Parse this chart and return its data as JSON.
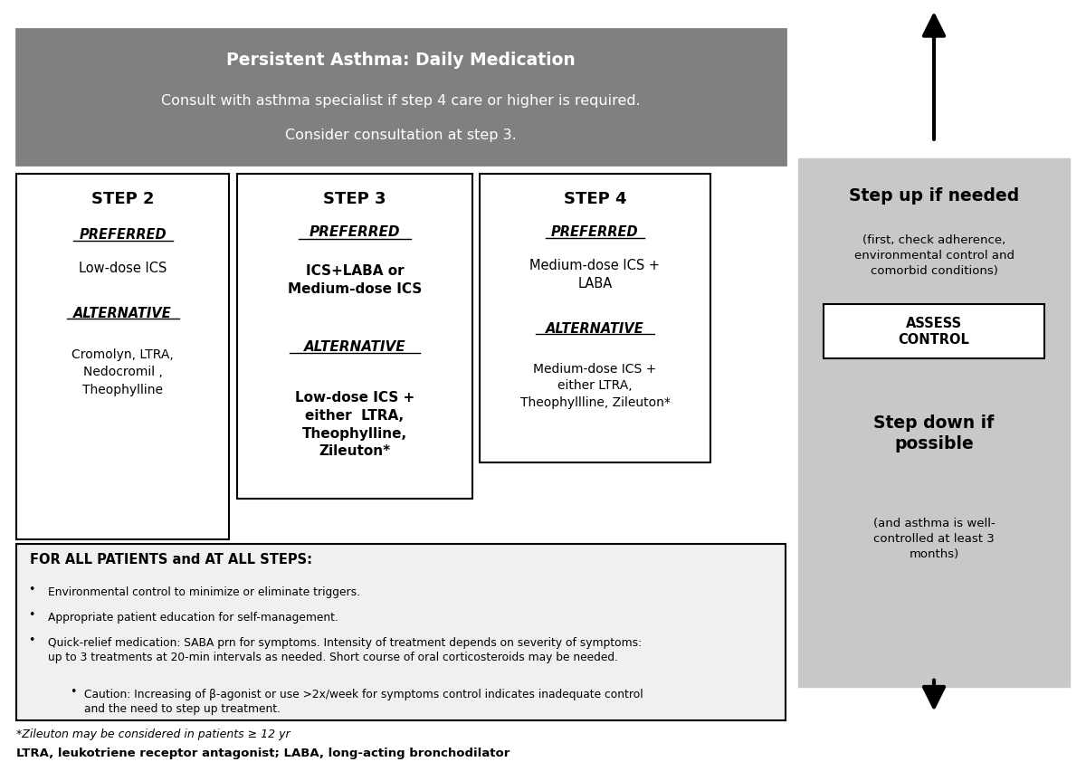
{
  "title_text": "Persistent Asthma: Daily Medication",
  "title_sub1": "Consult with asthma specialist if step 4 care or higher is required.",
  "title_sub2": "Consider consultation at step 3.",
  "title_bg": "#808080",
  "title_text_color": "#ffffff",
  "step2_title": "STEP 2",
  "step2_pref_label": "PREFERRED",
  "step2_pref_text": "Low-dose ICS",
  "step2_alt_label": "ALTERNATIVE",
  "step2_alt_text": "Cromolyn, LTRA,\nNedocromil ,\nTheophylline",
  "step3_title": "STEP 3",
  "step3_pref_label": "PREFERRED",
  "step3_pref_text": "ICS+LABA or\nMedium-dose ICS",
  "step3_alt_label": "ALTERNATIVE",
  "step3_alt_text": "Low-dose ICS +\neither  LTRA,\nTheophylline,\nZileuton*",
  "step4_title": "STEP 4",
  "step4_pref_label": "PREFERRED",
  "step4_pref_text": "Medium-dose ICS +\nLABA",
  "step4_alt_label": "ALTERNATIVE",
  "step4_alt_text": "Medium-dose ICS +\neither LTRA,\nTheophyllline, Zileuton*",
  "all_patients_title": "FOR ALL PATIENTS and AT ALL STEPS:",
  "all_patients_bullets": [
    "Environmental control to minimize or eliminate triggers.",
    "Appropriate patient education for self-management.",
    "Quick-relief medication: SABA prn for symptoms. Intensity of treatment depends on severity of symptoms:\nup to 3 treatments at 20-min intervals as needed. Short course of oral corticosteroids may be needed.",
    "Caution: Increasing of β-agonist or use >2x/week for symptoms control indicates inadequate control\nand the need to step up treatment."
  ],
  "right_panel_bg": "#c8c8c8",
  "step_up_text": "Step up if needed",
  "step_up_sub": "(first, check adherence,\nenvironmental control and\ncomorbid conditions)",
  "assess_text": "ASSESS\nCONTROL",
  "step_down_text": "Step down if\npossible",
  "step_down_sub": "(and asthma is well-\ncontrolled at least 3\nmonths)",
  "footnote1": "*Zileuton may be considered in patients ≥ 12 yr",
  "footnote2": "LTRA, leukotriene receptor antagonist; LABA, long-acting bronchodilator",
  "bg_color": "#ffffff",
  "box_border_color": "#000000",
  "step_box_bg": "#ffffff",
  "all_patients_bg": "#f0f0f0"
}
